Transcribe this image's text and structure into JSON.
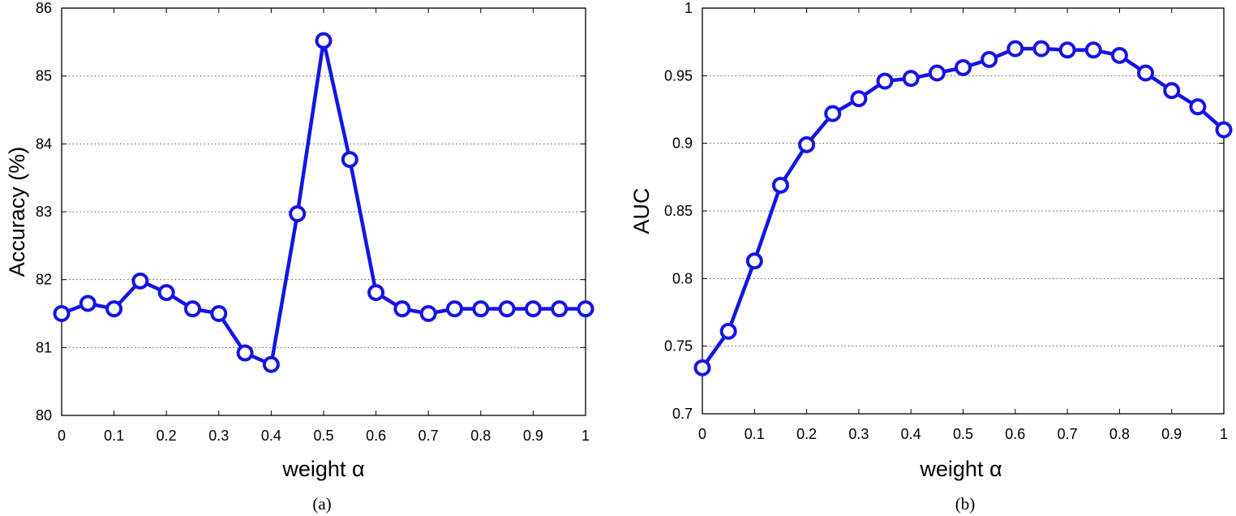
{
  "chart_data": [
    {
      "type": "line",
      "caption": "(a)",
      "xlabel": "weight  α",
      "ylabel": "Accuracy (%)",
      "xlim": [
        0,
        1
      ],
      "ylim": [
        80,
        86
      ],
      "xticks": [
        0,
        0.1,
        0.2,
        0.3,
        0.4,
        0.5,
        0.6,
        0.7,
        0.8,
        0.9,
        1
      ],
      "yticks": [
        80,
        81,
        82,
        83,
        84,
        85,
        86
      ],
      "grid": "horizontal-dotted",
      "series": [
        {
          "color": "#1414e6",
          "marker": "circle",
          "x": [
            0,
            0.05,
            0.1,
            0.15,
            0.2,
            0.25,
            0.3,
            0.35,
            0.4,
            0.45,
            0.5,
            0.55,
            0.6,
            0.65,
            0.7,
            0.75,
            0.8,
            0.85,
            0.9,
            0.95,
            1
          ],
          "y": [
            81.5,
            81.65,
            81.57,
            81.98,
            81.81,
            81.57,
            81.5,
            80.92,
            80.75,
            82.97,
            85.52,
            83.77,
            81.81,
            81.57,
            81.5,
            81.57,
            81.57,
            81.57,
            81.57,
            81.57,
            81.57
          ]
        }
      ]
    },
    {
      "type": "line",
      "caption": "(b)",
      "xlabel": "weight  α",
      "ylabel": "AUC",
      "xlim": [
        0,
        1
      ],
      "ylim": [
        0.7,
        1
      ],
      "xticks": [
        0,
        0.1,
        0.2,
        0.3,
        0.4,
        0.5,
        0.6,
        0.7,
        0.8,
        0.9,
        1
      ],
      "yticks": [
        0.7,
        0.75,
        0.8,
        0.85,
        0.9,
        0.95,
        1
      ],
      "grid": "horizontal-dotted",
      "series": [
        {
          "color": "#1414e6",
          "marker": "circle",
          "x": [
            0,
            0.05,
            0.1,
            0.15,
            0.2,
            0.25,
            0.3,
            0.35,
            0.4,
            0.45,
            0.5,
            0.55,
            0.6,
            0.65,
            0.7,
            0.75,
            0.8,
            0.85,
            0.9,
            0.95,
            1
          ],
          "y": [
            0.734,
            0.761,
            0.813,
            0.869,
            0.899,
            0.922,
            0.933,
            0.946,
            0.948,
            0.952,
            0.956,
            0.962,
            0.97,
            0.97,
            0.969,
            0.969,
            0.965,
            0.952,
            0.939,
            0.927,
            0.91
          ]
        }
      ]
    }
  ]
}
